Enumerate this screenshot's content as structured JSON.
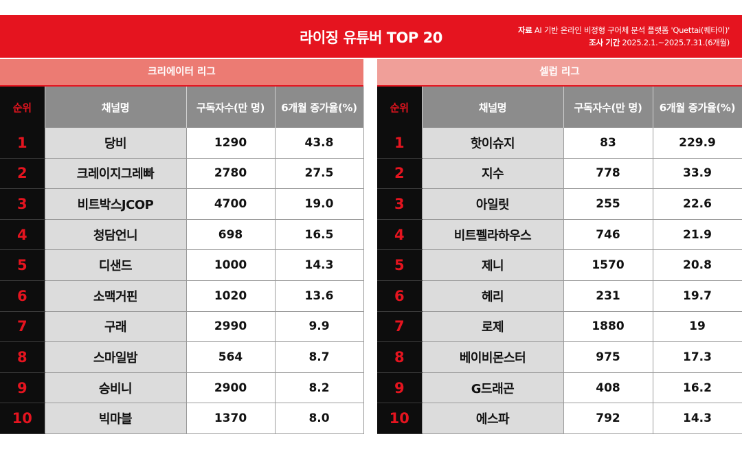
{
  "header": {
    "title": "라이징 유튜버 TOP 20",
    "source_label": "자료",
    "source_text": "AI 기반 온라인 비정형 구어체 분석 플랫폼 'Quettai(퀘타이)'",
    "period_label": "조사 기간",
    "period_text": "2025.2.1.~2025.7.31.(6개월)"
  },
  "columns": {
    "rank": "순위",
    "channel": "채널명",
    "subscribers": "구독자수(만 명)",
    "growth": "6개월 증가율(%)"
  },
  "creator_league": {
    "title": "크리에이터 리그",
    "rows": [
      {
        "rank": "1",
        "name": "당비",
        "subs": "1290",
        "growth": "43.8"
      },
      {
        "rank": "2",
        "name": "크레이지그레빠",
        "subs": "2780",
        "growth": "27.5"
      },
      {
        "rank": "3",
        "name": "비트박스JCOP",
        "subs": "4700",
        "growth": "19.0"
      },
      {
        "rank": "4",
        "name": "청담언니",
        "subs": "698",
        "growth": "16.5"
      },
      {
        "rank": "5",
        "name": "디샌드",
        "subs": "1000",
        "growth": "14.3"
      },
      {
        "rank": "6",
        "name": "소맥거핀",
        "subs": "1020",
        "growth": "13.6"
      },
      {
        "rank": "7",
        "name": "구래",
        "subs": "2990",
        "growth": "9.9"
      },
      {
        "rank": "8",
        "name": "스마일밤",
        "subs": "564",
        "growth": "8.7"
      },
      {
        "rank": "9",
        "name": "승비니",
        "subs": "2900",
        "growth": "8.2"
      },
      {
        "rank": "10",
        "name": "빅마블",
        "subs": "1370",
        "growth": "8.0"
      }
    ]
  },
  "celeb_league": {
    "title": "셀럽 리그",
    "rows": [
      {
        "rank": "1",
        "name": "핫이슈지",
        "subs": "83",
        "growth": "229.9"
      },
      {
        "rank": "2",
        "name": "지수",
        "subs": "778",
        "growth": "33.9"
      },
      {
        "rank": "3",
        "name": "아일릿",
        "subs": "255",
        "growth": "22.6"
      },
      {
        "rank": "4",
        "name": "비트펠라하우스",
        "subs": "746",
        "growth": "21.9"
      },
      {
        "rank": "5",
        "name": "제니",
        "subs": "1570",
        "growth": "20.8"
      },
      {
        "rank": "6",
        "name": "헤리",
        "subs": "231",
        "growth": "19.7"
      },
      {
        "rank": "7",
        "name": "로제",
        "subs": "1880",
        "growth": "19"
      },
      {
        "rank": "8",
        "name": "베이비몬스터",
        "subs": "975",
        "growth": "17.3"
      },
      {
        "rank": "9",
        "name": "G드래곤",
        "subs": "408",
        "growth": "16.2"
      },
      {
        "rank": "10",
        "name": "에스파",
        "subs": "792",
        "growth": "14.3"
      }
    ]
  },
  "colors": {
    "brand_red": "#e5141f",
    "creator_header": "#ec7b73",
    "celeb_header": "#f09f99",
    "column_header": "#8c8c8c",
    "rank_background": "#0d0d0d",
    "name_background": "#dcdcdc"
  }
}
